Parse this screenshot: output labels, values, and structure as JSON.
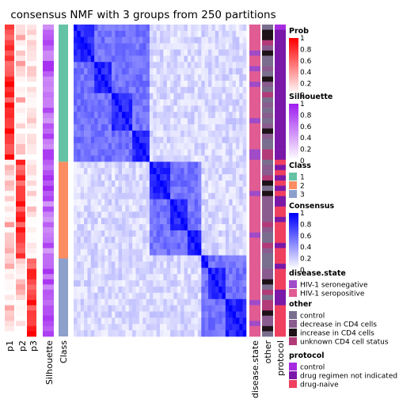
{
  "chart_data": {
    "type": "heatmap",
    "title": "consensus NMF with 3 groups from 250 partitions",
    "columns": [
      "p1",
      "p2",
      "p3",
      "Silhouette",
      "Class",
      "disease.state",
      "other",
      "protocol"
    ],
    "class_groups": [
      {
        "class": "1",
        "color": "#66C2A5",
        "fraction": 0.44
      },
      {
        "class": "2",
        "color": "#FC8D62",
        "fraction": 0.31
      },
      {
        "class": "3",
        "color": "#8DA0CB",
        "fraction": 0.25
      }
    ],
    "legends": [
      {
        "title": "Prob",
        "type": "continuous",
        "ticks": [
          "1",
          "0.8",
          "0.6",
          "0.4",
          "0.2",
          "0"
        ],
        "color_low": "#FFFFFF",
        "color_high": "#FF0000"
      },
      {
        "title": "Silhouette",
        "type": "continuous",
        "ticks": [
          "1",
          "0.8",
          "0.6",
          "0.4",
          "0.2",
          "0"
        ],
        "color_low": "#FFFFFF",
        "color_high": "#A020F0"
      },
      {
        "title": "Class",
        "type": "discrete",
        "items": [
          {
            "label": "1",
            "color": "#66C2A5"
          },
          {
            "label": "2",
            "color": "#FC8D62"
          },
          {
            "label": "3",
            "color": "#8DA0CB"
          }
        ]
      },
      {
        "title": "Consensus",
        "type": "continuous",
        "ticks": [
          "1",
          "0.8",
          "0.6",
          "0.4",
          "0.2",
          "0"
        ],
        "color_low": "#FFFFFF",
        "color_high": "#0000FF"
      },
      {
        "title": "disease.state",
        "type": "discrete",
        "items": [
          {
            "label": "HIV-1 seronegative",
            "color": "#A04BC8"
          },
          {
            "label": "HIV-1 seropositive",
            "color": "#E05C93"
          }
        ]
      },
      {
        "title": "other",
        "type": "discrete",
        "items": [
          {
            "label": "control",
            "color": "#7A6E8E"
          },
          {
            "label": "decrease in CD4 cells",
            "color": "#8A5B8E"
          },
          {
            "label": "increase in CD4 cells",
            "color": "#1E1218"
          },
          {
            "label": "unknown CD4 cell status",
            "color": "#B33A78"
          }
        ]
      },
      {
        "title": "protocol",
        "type": "discrete",
        "items": [
          {
            "label": "control",
            "color": "#A62BE0"
          },
          {
            "label": "drug regimen not indicated",
            "color": "#7A18A8"
          },
          {
            "label": "drug-naive",
            "color": "#F04060"
          }
        ]
      }
    ]
  }
}
